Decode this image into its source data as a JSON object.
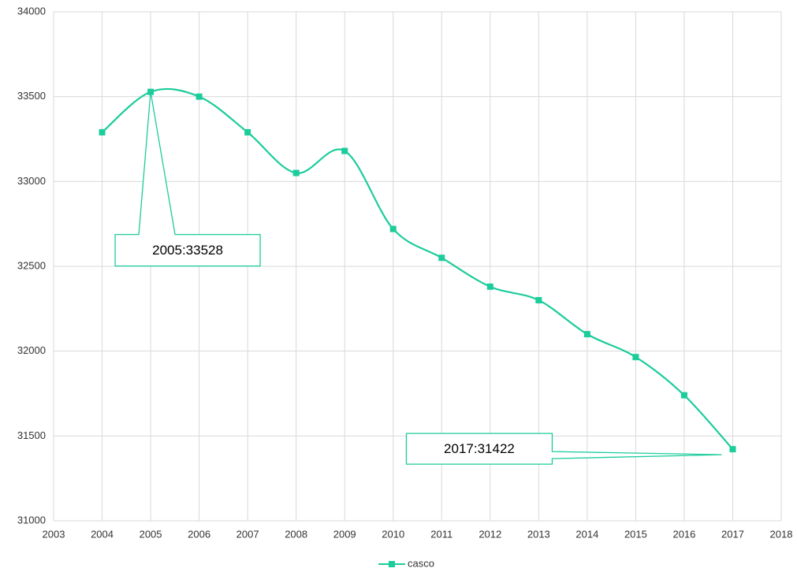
{
  "chart_data": {
    "type": "line",
    "x": [
      2004,
      2005,
      2006,
      2007,
      2008,
      2009,
      2010,
      2011,
      2012,
      2013,
      2014,
      2015,
      2016,
      2017
    ],
    "series": [
      {
        "name": "casco",
        "color": "#1ccc9b",
        "values": [
          33290,
          33528,
          33500,
          33290,
          33050,
          33180,
          32720,
          32550,
          32380,
          32300,
          32100,
          31965,
          31740,
          31422
        ]
      }
    ],
    "xlim": [
      2003,
      2018
    ],
    "xticks": [
      2003,
      2004,
      2005,
      2006,
      2007,
      2008,
      2009,
      2010,
      2011,
      2012,
      2013,
      2014,
      2015,
      2016,
      2017,
      2018
    ],
    "ylim": [
      31000,
      34000
    ],
    "yticks": [
      31000,
      31500,
      32000,
      32500,
      33000,
      33500,
      34000
    ],
    "grid": true,
    "smooth": true,
    "legend": "bottom",
    "annotations": [
      {
        "x": 2005,
        "y": 33528,
        "text": "2005:33528"
      },
      {
        "x": 2017,
        "y": 31422,
        "text": "2017:31422"
      }
    ]
  }
}
